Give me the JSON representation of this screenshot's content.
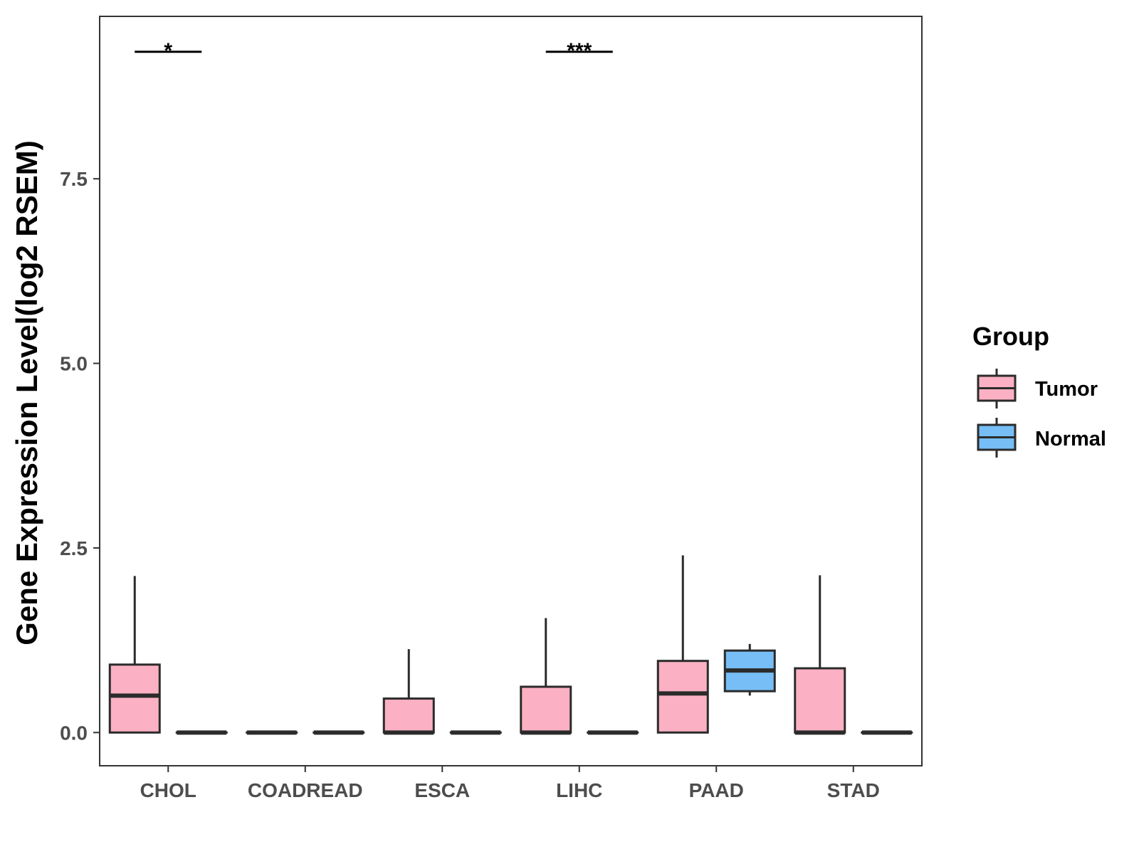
{
  "chart_data": {
    "type": "boxplot",
    "ylabel": "Gene Expression Level(log2 RSEM)",
    "xlabel": "",
    "ylim": [
      -0.45,
      9.7
    ],
    "yticks": [
      0.0,
      2.5,
      5.0,
      7.5
    ],
    "ytick_labels": [
      "0.0",
      "2.5",
      "5.0",
      "7.5"
    ],
    "categories": [
      "CHOL",
      "COADREAD",
      "ESCA",
      "LIHC",
      "PAAD",
      "STAD"
    ],
    "legend": {
      "title": "Group",
      "entries": [
        {
          "name": "Tumor",
          "color": "#FBB1C3"
        },
        {
          "name": "Normal",
          "color": "#76BEF5"
        }
      ]
    },
    "series": [
      {
        "name": "Tumor",
        "color": "#FBB1C3",
        "boxes": [
          {
            "category": "CHOL",
            "min": 0.0,
            "q1": 0.0,
            "median": 0.5,
            "q3": 0.92,
            "max": 2.12
          },
          {
            "category": "COADREAD",
            "min": 0.0,
            "q1": 0.0,
            "median": 0.0,
            "q3": 0.0,
            "max": 0.0
          },
          {
            "category": "ESCA",
            "min": 0.0,
            "q1": 0.0,
            "median": 0.0,
            "q3": 0.46,
            "max": 1.13
          },
          {
            "category": "LIHC",
            "min": 0.0,
            "q1": 0.0,
            "median": 0.0,
            "q3": 0.62,
            "max": 1.55
          },
          {
            "category": "PAAD",
            "min": 0.0,
            "q1": 0.0,
            "median": 0.53,
            "q3": 0.97,
            "max": 2.4
          },
          {
            "category": "STAD",
            "min": 0.0,
            "q1": 0.0,
            "median": 0.0,
            "q3": 0.87,
            "max": 2.13
          }
        ]
      },
      {
        "name": "Normal",
        "color": "#76BEF5",
        "boxes": [
          {
            "category": "CHOL",
            "min": 0.0,
            "q1": 0.0,
            "median": 0.0,
            "q3": 0.0,
            "max": 0.0
          },
          {
            "category": "COADREAD",
            "min": 0.0,
            "q1": 0.0,
            "median": 0.0,
            "q3": 0.0,
            "max": 0.0
          },
          {
            "category": "ESCA",
            "min": 0.0,
            "q1": 0.0,
            "median": 0.0,
            "q3": 0.0,
            "max": 0.0
          },
          {
            "category": "LIHC",
            "min": 0.0,
            "q1": 0.0,
            "median": 0.0,
            "q3": 0.0,
            "max": 0.0
          },
          {
            "category": "PAAD",
            "min": 0.5,
            "q1": 0.56,
            "median": 0.84,
            "q3": 1.11,
            "max": 1.2
          },
          {
            "category": "STAD",
            "min": 0.0,
            "q1": 0.0,
            "median": 0.0,
            "q3": 0.0,
            "max": 0.0
          }
        ]
      }
    ],
    "significance": [
      {
        "category": "CHOL",
        "label": "*",
        "y": 9.22
      },
      {
        "category": "LIHC",
        "label": "***",
        "y": 9.22
      }
    ]
  }
}
